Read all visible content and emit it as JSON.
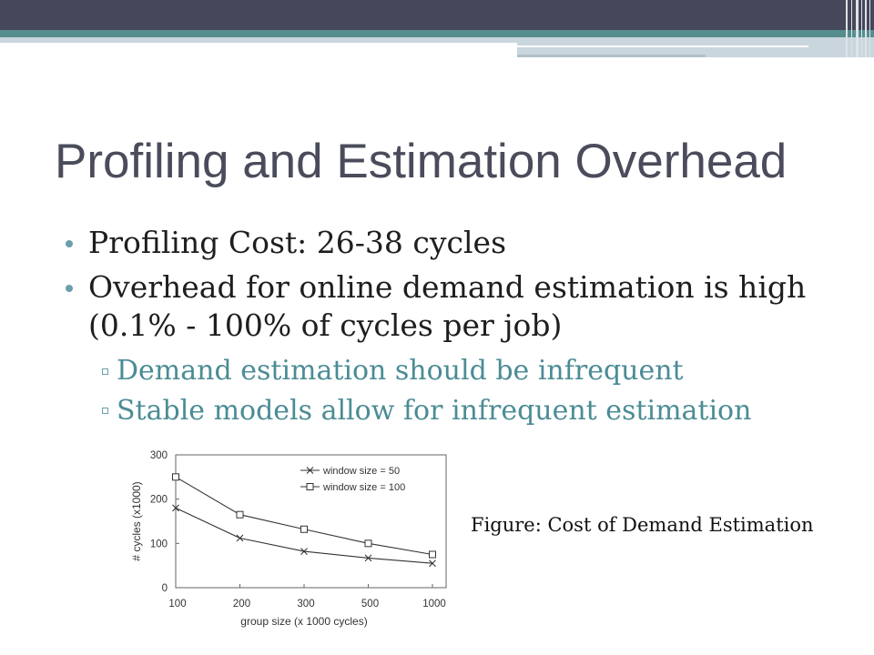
{
  "colors": {
    "header_dark": "#45475a",
    "header_teal": "#568e8f",
    "header_light": "#c9d6dd",
    "title_text": "#4a4c5b",
    "body_text": "#1e1e1e",
    "sub_bullet_text": "#4b8c95",
    "bullet_marker": "#6c9fab"
  },
  "slide": {
    "title": "Profiling and Estimation Overhead",
    "bullets": [
      {
        "text": "Profiling Cost: 26-38 cycles"
      },
      {
        "lines": [
          "Overhead for online demand estimation is high",
          "(0.1% - 100% of cycles per job)"
        ]
      }
    ],
    "sub_bullets": [
      {
        "text": "Demand estimation should be infrequent"
      },
      {
        "text": "Stable models allow for infrequent estimation"
      }
    ],
    "figure_caption": "Figure: Cost of Demand Estimation"
  },
  "chart_data": {
    "type": "line",
    "categories": [
      "100",
      "200",
      "300",
      "500",
      "1000"
    ],
    "series": [
      {
        "name": "window size = 50",
        "marker": "x",
        "values": [
          180,
          112,
          82,
          67,
          55
        ]
      },
      {
        "name": "window size = 100",
        "marker": "square",
        "values": [
          250,
          165,
          132,
          100,
          75
        ]
      }
    ],
    "xlabel": "group size (x 1000 cycles)",
    "ylabel": "# cycles (x1000)",
    "ylim": [
      0,
      300
    ],
    "yticks": [
      0,
      100,
      200,
      300
    ],
    "grid": false,
    "legend": "top-right",
    "line_color": "#333333"
  }
}
